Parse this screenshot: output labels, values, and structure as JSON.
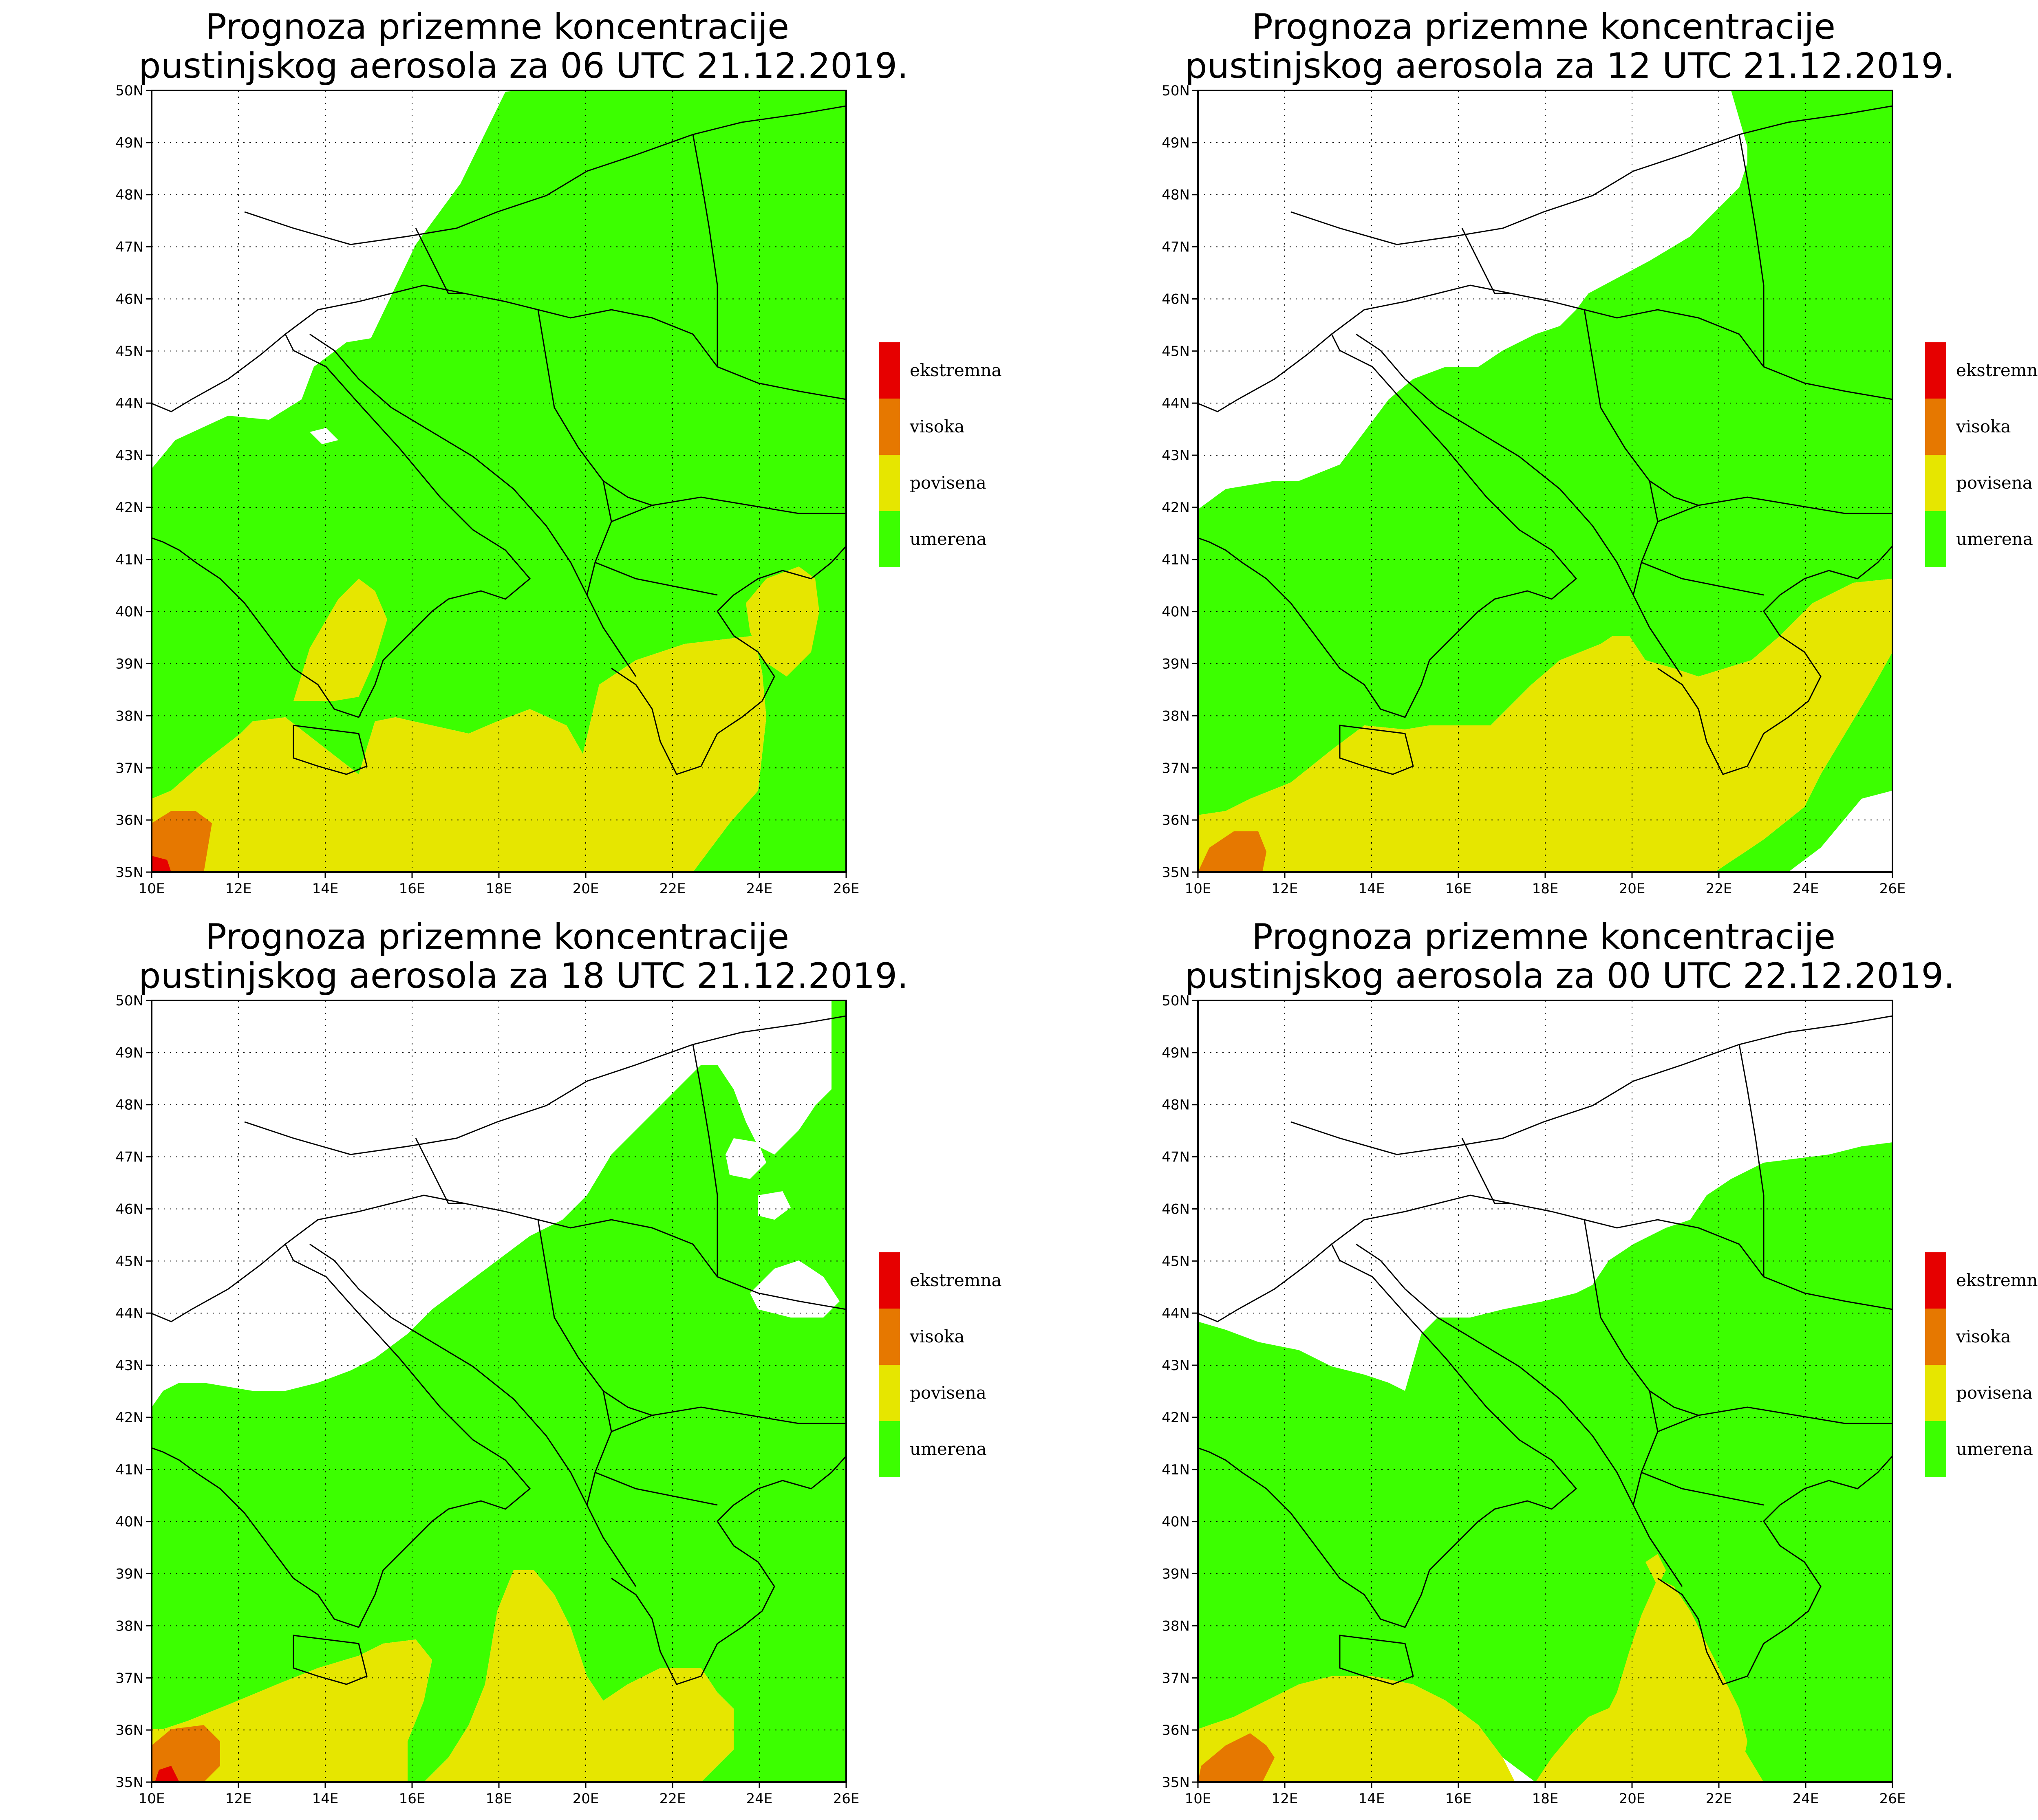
{
  "legend": {
    "items": [
      {
        "label": "ekstremna",
        "color": "#e60000"
      },
      {
        "label": "visoka",
        "color": "#e67800"
      },
      {
        "label": "povisena",
        "color": "#e6e600"
      },
      {
        "label": "umerena",
        "color": "#3cff00"
      }
    ]
  },
  "axes": {
    "lat_labels": [
      "50N",
      "49N",
      "48N",
      "47N",
      "46N",
      "45N",
      "44N",
      "43N",
      "42N",
      "41N",
      "40N",
      "39N",
      "38N",
      "37N",
      "36N",
      "35N"
    ],
    "lon_labels": [
      "10E",
      "12E",
      "14E",
      "16E",
      "18E",
      "20E",
      "22E",
      "24E",
      "26E"
    ],
    "lat_range": [
      35,
      50
    ],
    "lon_range": [
      10,
      26
    ],
    "grid": "dotted"
  },
  "panels": [
    {
      "title_line1": "Prognoza prizemne koncentracije",
      "title_line2": "pustinjskog aerosola za 06 UTC 21.12.2019."
    },
    {
      "title_line1": "Prognoza prizemne koncentracije",
      "title_line2": "pustinjskog aerosola za 12 UTC 21.12.2019."
    },
    {
      "title_line1": "Prognoza prizemne koncentracije",
      "title_line2": "pustinjskog aerosola za 18 UTC 21.12.2019."
    },
    {
      "title_line1": "Prognoza prizemne koncentracije",
      "title_line2": "pustinjskog aerosola za 00 UTC 22.12.2019."
    }
  ]
}
